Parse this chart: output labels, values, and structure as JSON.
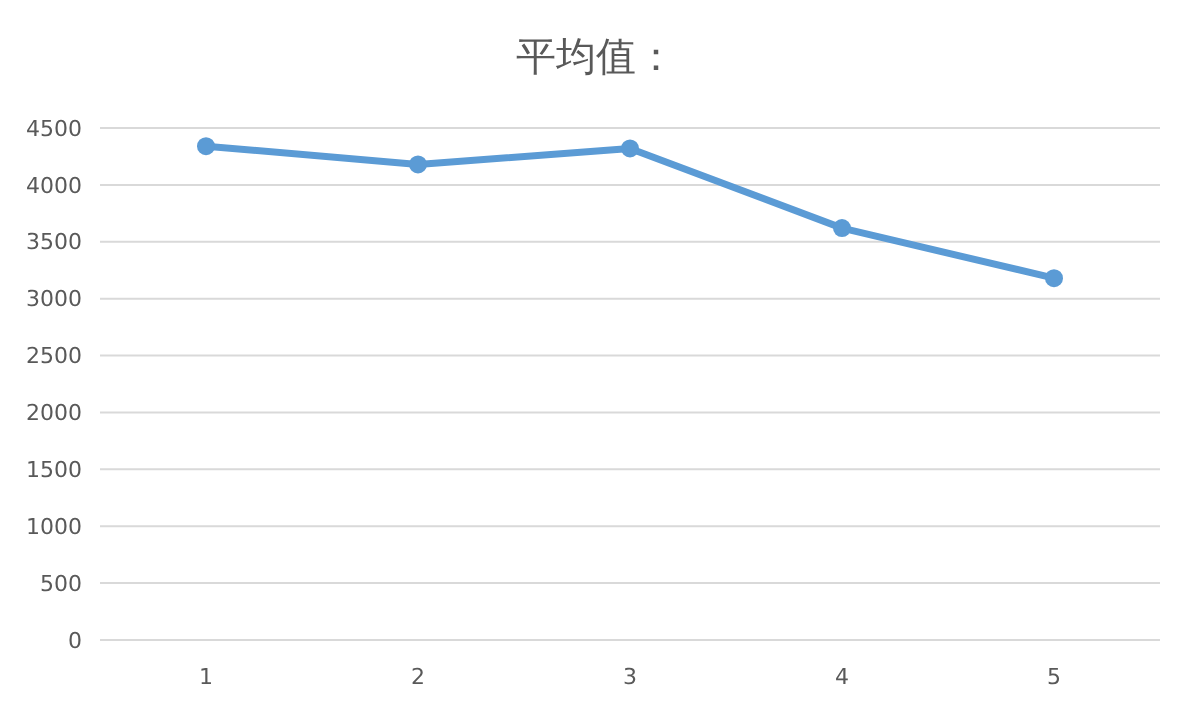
{
  "chart_data": {
    "type": "line",
    "title": "平均值：",
    "categories": [
      "1",
      "2",
      "3",
      "4",
      "5"
    ],
    "series": [
      {
        "color": "#5b9bd5",
        "values": [
          4340,
          4180,
          4320,
          3620,
          3180
        ]
      }
    ],
    "ylim": [
      0,
      4500
    ],
    "yticks": [
      0,
      500,
      1000,
      1500,
      2000,
      2500,
      3000,
      3500,
      4000,
      4500
    ],
    "grid": "y",
    "marker": "circle",
    "line_style": "solid"
  }
}
